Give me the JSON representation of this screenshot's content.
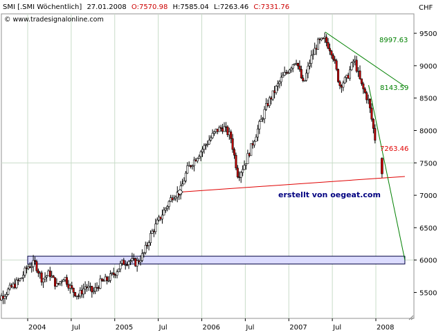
{
  "header": {
    "symbol": "SMI [.SMI Wöchentlich]",
    "date": "27.01.2008",
    "open_label": "O:7570.98",
    "high_label": "H:7585.04",
    "low_label": "L:7263.46",
    "close_label": "C:7331.76",
    "source": "© www.tradesignalonline.com"
  },
  "watermark": "erstellt von oegeat.com",
  "colors": {
    "background": "#ffffff",
    "grid": "#c8dcc8",
    "up_candle": "#ffffff",
    "down_candle": "#cc0000",
    "trend_red": "#e00000",
    "trend_green": "#008000",
    "zone_fill": "#dcdcff",
    "zone_stroke": "#000040",
    "watermark": "#000080",
    "header_red": "#cc0000"
  },
  "chart_data": {
    "type": "candlestick",
    "currency": "CHF",
    "ylim": [
      5100,
      9800
    ],
    "y_ticks": [
      5500,
      6000,
      6500,
      7000,
      7500,
      8000,
      8500,
      9000,
      9500
    ],
    "x_tick_labels": [
      "2004",
      "Jul",
      "2005",
      "Jul",
      "2006",
      "Jul",
      "2007",
      "Jul",
      "2008"
    ],
    "x_ticks": [
      "2004-01",
      "2004-07",
      "2005-01",
      "2005-07",
      "2006-01",
      "2006-07",
      "2007-01",
      "2007-07",
      "2008-01"
    ],
    "last_bar": {
      "date": "2008-01-27",
      "open": 7570.98,
      "high": 7585.04,
      "low": 7263.46,
      "close": 7331.76
    },
    "anchors": [
      [
        "2003-08",
        5300
      ],
      [
        "2003-10",
        5500
      ],
      [
        "2003-12",
        5700
      ],
      [
        "2004-01",
        5900
      ],
      [
        "2004-02",
        5950
      ],
      [
        "2004-03",
        5700
      ],
      [
        "2004-04",
        5800
      ],
      [
        "2004-05",
        5600
      ],
      [
        "2004-06",
        5750
      ],
      [
        "2004-07",
        5550
      ],
      [
        "2004-08",
        5450
      ],
      [
        "2004-09",
        5600
      ],
      [
        "2004-10",
        5500
      ],
      [
        "2004-11",
        5650
      ],
      [
        "2004-12",
        5700
      ],
      [
        "2005-01",
        5800
      ],
      [
        "2005-02",
        5950
      ],
      [
        "2005-03",
        6000
      ],
      [
        "2005-04",
        5950
      ],
      [
        "2005-05",
        6100
      ],
      [
        "2005-06",
        6400
      ],
      [
        "2005-07",
        6600
      ],
      [
        "2005-08",
        6800
      ],
      [
        "2005-09",
        7000
      ],
      [
        "2005-10",
        7050
      ],
      [
        "2005-11",
        7400
      ],
      [
        "2005-12",
        7550
      ],
      [
        "2006-01",
        7700
      ],
      [
        "2006-02",
        7850
      ],
      [
        "2006-03",
        8000
      ],
      [
        "2006-04",
        8050
      ],
      [
        "2006-05",
        7900
      ],
      [
        "2006-06",
        7300
      ],
      [
        "2006-07",
        7500
      ],
      [
        "2006-08",
        7800
      ],
      [
        "2006-09",
        8100
      ],
      [
        "2006-10",
        8400
      ],
      [
        "2006-11",
        8600
      ],
      [
        "2006-12",
        8800
      ],
      [
        "2007-01",
        8950
      ],
      [
        "2007-02",
        9100
      ],
      [
        "2007-03",
        8700
      ],
      [
        "2007-04",
        9100
      ],
      [
        "2007-05",
        9350
      ],
      [
        "2007-06",
        9400
      ],
      [
        "2007-07",
        9200
      ],
      [
        "2007-08",
        8700
      ],
      [
        "2007-09",
        8800
      ],
      [
        "2007-10",
        9100
      ],
      [
        "2007-11",
        8700
      ],
      [
        "2007-12",
        8450
      ],
      [
        "2008-01",
        7800
      ]
    ],
    "trendlines": [
      {
        "color": "red",
        "from": [
          "2005-10",
          7050
        ],
        "to": [
          "2008-05",
          7290
        ],
        "end_label": "7263.46"
      },
      {
        "color": "green",
        "from": [
          "2007-06",
          9520
        ],
        "to": [
          "2008-05",
          8680
        ],
        "end_label": "8997.63"
      },
      {
        "color": "green",
        "from": [
          "2007-12",
          8700
        ],
        "to": [
          "2008-05",
          6000
        ],
        "end_label": "8143.59"
      }
    ],
    "zone": {
      "from": "2004-01",
      "to": "2008-05",
      "y_low": 5940,
      "y_high": 6060
    }
  }
}
